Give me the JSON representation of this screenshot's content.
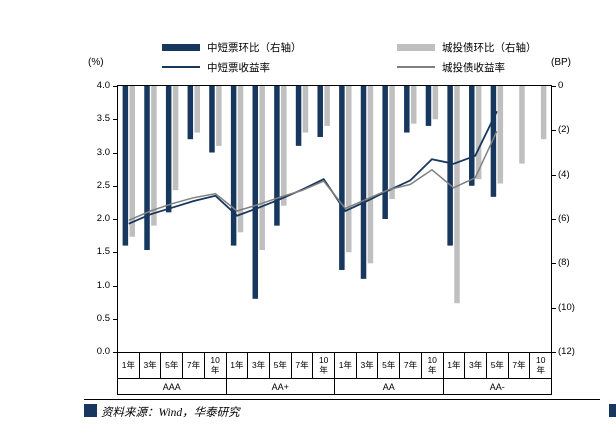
{
  "footer": {
    "source": "资料来源：Wind，华泰研究"
  },
  "chart_data": {
    "type": "bar",
    "subtype": "combo: bars hang downward from zero on the right (BP) axis; yield lines plotted on the left (%) axis",
    "groups": [
      "AAA",
      "AA+",
      "AA",
      "AA-"
    ],
    "tenors": [
      "1年",
      "3年",
      "5年",
      "7年",
      "10\n年"
    ],
    "left_axis": {
      "unit": "(%)",
      "min": 0,
      "max": 4,
      "tick_labels": [
        "4.0",
        "3.5",
        "3.0",
        "2.5",
        "2.0",
        "1.5",
        "1.0",
        "0.5",
        "0.0"
      ]
    },
    "right_axis": {
      "unit": "(BP)",
      "min": -12,
      "max": 0,
      "tick_labels": [
        "0",
        "(2)",
        "(4)",
        "(6)",
        "(8)",
        "(10)",
        "(12)"
      ]
    },
    "legend_position": "top",
    "grid": false,
    "series": [
      {
        "key": "mtn-change",
        "name": "中短票环比（右轴）",
        "type": "bar",
        "axis": "right",
        "color": "#17375E",
        "swatch": "bar",
        "values": [
          -7.2,
          -7.4,
          -5.7,
          -2.4,
          -3.0,
          -7.2,
          -9.6,
          -6.3,
          -2.7,
          -2.3,
          -8.3,
          -8.7,
          -6.0,
          -2.1,
          -1.8,
          -7.2,
          -4.5,
          -5.0,
          null,
          null
        ]
      },
      {
        "key": "chengtou-change",
        "name": "城投债环比（右轴）",
        "type": "bar",
        "axis": "right",
        "color": "#BFBFBF",
        "swatch": "bar",
        "values": [
          -6.8,
          -6.3,
          -4.7,
          -2.1,
          -2.7,
          -6.6,
          -7.4,
          -5.4,
          -2.1,
          -1.8,
          -7.5,
          -8.0,
          -5.1,
          -1.7,
          -1.5,
          -9.8,
          -4.2,
          -4.4,
          -3.5,
          -2.4
        ]
      },
      {
        "key": "mtn-yield",
        "name": "中短票收益率",
        "type": "line",
        "axis": "left",
        "color": "#17375E",
        "swatch": "line",
        "stroke_width": 1.8,
        "values": [
          1.93,
          2.07,
          2.17,
          2.27,
          2.35,
          2.05,
          2.17,
          2.3,
          2.44,
          2.6,
          2.12,
          2.27,
          2.43,
          2.58,
          2.9,
          2.83,
          2.95,
          3.62,
          null,
          null
        ]
      },
      {
        "key": "chengtou-yield",
        "name": "城投债收益率",
        "type": "line",
        "axis": "left",
        "color": "#808080",
        "swatch": "line",
        "stroke_width": 1.5,
        "values": [
          1.98,
          2.12,
          2.23,
          2.32,
          2.38,
          2.12,
          2.22,
          2.33,
          2.43,
          2.57,
          2.16,
          2.3,
          2.44,
          2.52,
          2.74,
          2.47,
          2.62,
          3.32,
          null,
          null
        ]
      }
    ]
  }
}
